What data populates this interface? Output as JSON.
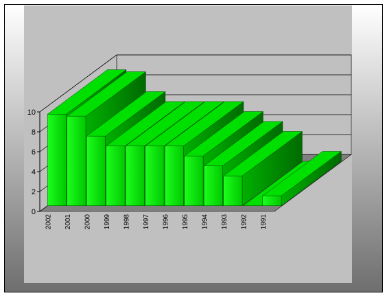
{
  "chart_data": {
    "type": "bar",
    "categories": [
      "2002",
      "2001",
      "2000",
      "1999",
      "1998",
      "1997",
      "1996",
      "1995",
      "1994",
      "1993",
      "1992",
      "1991"
    ],
    "values": [
      9.2,
      9,
      7,
      6,
      6,
      6,
      6,
      5,
      4,
      3,
      0,
      1
    ],
    "color": "#00e000",
    "ylim": [
      0,
      10
    ],
    "yticks": [
      0,
      2,
      4,
      6,
      8,
      10
    ],
    "grid": true
  }
}
